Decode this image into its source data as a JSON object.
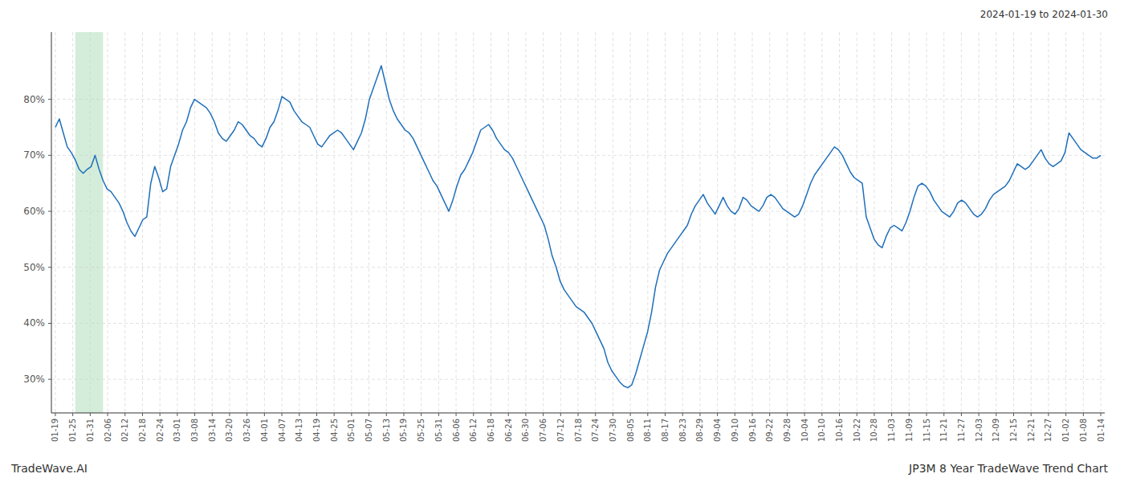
{
  "chart_data": {
    "type": "line",
    "title": "JP3M 8 Year TradeWave Trend Chart",
    "subtitle": "2024-01-19 to 2024-01-30",
    "annotations": [
      {
        "text": "TradeWave.AI"
      }
    ],
    "color": "#1f6fba",
    "grid": true,
    "bands": [
      {
        "start": 5,
        "end": 12,
        "color": "#d4edda"
      }
    ],
    "xlim": [
      -1,
      264
    ],
    "xticks": [
      {
        "value": 0,
        "label": "01-19"
      },
      {
        "value": 4.3833,
        "label": "01-25"
      },
      {
        "value": 8.7667,
        "label": "01-31"
      },
      {
        "value": 13.15,
        "label": "02-06"
      },
      {
        "value": 17.5333,
        "label": "02-12"
      },
      {
        "value": 21.9167,
        "label": "02-18"
      },
      {
        "value": 26.3,
        "label": "02-24"
      },
      {
        "value": 30.6833,
        "label": "03-01"
      },
      {
        "value": 35.0667,
        "label": "03-08"
      },
      {
        "value": 39.45,
        "label": "03-14"
      },
      {
        "value": 43.8333,
        "label": "03-20"
      },
      {
        "value": 48.2167,
        "label": "03-26"
      },
      {
        "value": 52.6,
        "label": "04-01"
      },
      {
        "value": 56.9833,
        "label": "04-07"
      },
      {
        "value": 61.3667,
        "label": "04-13"
      },
      {
        "value": 65.75,
        "label": "04-19"
      },
      {
        "value": 70.1333,
        "label": "04-25"
      },
      {
        "value": 74.5167,
        "label": "05-01"
      },
      {
        "value": 78.9,
        "label": "05-07"
      },
      {
        "value": 83.2833,
        "label": "05-13"
      },
      {
        "value": 87.6667,
        "label": "05-19"
      },
      {
        "value": 92.05,
        "label": "05-25"
      },
      {
        "value": 96.4333,
        "label": "05-31"
      },
      {
        "value": 100.8167,
        "label": "06-06"
      },
      {
        "value": 105.2,
        "label": "06-12"
      },
      {
        "value": 109.5833,
        "label": "06-18"
      },
      {
        "value": 113.9667,
        "label": "06-24"
      },
      {
        "value": 118.35,
        "label": "06-30"
      },
      {
        "value": 122.7333,
        "label": "07-06"
      },
      {
        "value": 127.1167,
        "label": "07-12"
      },
      {
        "value": 131.5,
        "label": "07-18"
      },
      {
        "value": 135.8833,
        "label": "07-24"
      },
      {
        "value": 140.2667,
        "label": "07-30"
      },
      {
        "value": 144.65,
        "label": "08-05"
      },
      {
        "value": 149.0333,
        "label": "08-11"
      },
      {
        "value": 153.4167,
        "label": "08-17"
      },
      {
        "value": 157.8,
        "label": "08-23"
      },
      {
        "value": 162.1833,
        "label": "08-29"
      },
      {
        "value": 166.5667,
        "label": "09-04"
      },
      {
        "value": 170.95,
        "label": "09-10"
      },
      {
        "value": 175.3333,
        "label": "09-16"
      },
      {
        "value": 179.7167,
        "label": "09-22"
      },
      {
        "value": 184.1,
        "label": "09-28"
      },
      {
        "value": 188.4833,
        "label": "10-04"
      },
      {
        "value": 192.8667,
        "label": "10-10"
      },
      {
        "value": 197.25,
        "label": "10-16"
      },
      {
        "value": 201.6333,
        "label": "10-22"
      },
      {
        "value": 206.0167,
        "label": "10-28"
      },
      {
        "value": 210.4,
        "label": "11-03"
      },
      {
        "value": 214.7833,
        "label": "11-09"
      },
      {
        "value": 219.1667,
        "label": "11-15"
      },
      {
        "value": 223.55,
        "label": "11-21"
      },
      {
        "value": 227.9333,
        "label": "11-27"
      },
      {
        "value": 232.3167,
        "label": "12-03"
      },
      {
        "value": 236.7,
        "label": "12-09"
      },
      {
        "value": 241.0833,
        "label": "12-15"
      },
      {
        "value": 245.4667,
        "label": "12-21"
      },
      {
        "value": 249.85,
        "label": "12-27"
      },
      {
        "value": 254.2333,
        "label": "01-02"
      },
      {
        "value": 258.6167,
        "label": "01-08"
      },
      {
        "value": 263,
        "label": "01-14"
      }
    ],
    "ylim": [
      24,
      92
    ],
    "yticks": [
      {
        "value": 30,
        "label": "30%"
      },
      {
        "value": 40,
        "label": "40%"
      },
      {
        "value": 50,
        "label": "50%"
      },
      {
        "value": 60,
        "label": "60%"
      },
      {
        "value": 70,
        "label": "70%"
      },
      {
        "value": 80,
        "label": "80%"
      }
    ],
    "values": [
      75.0,
      76.5,
      74.0,
      71.5,
      70.5,
      69.2,
      67.5,
      66.8,
      67.5,
      68.0,
      70.0,
      67.5,
      65.5,
      64.0,
      63.5,
      62.5,
      61.5,
      60.0,
      58.0,
      56.5,
      55.5,
      57.0,
      58.5,
      59.0,
      65.0,
      68.0,
      66.0,
      63.5,
      64.0,
      68.0,
      70.0,
      72.0,
      74.5,
      76.0,
      78.5,
      80.0,
      79.5,
      79.0,
      78.5,
      77.5,
      76.0,
      74.0,
      73.0,
      72.5,
      73.5,
      74.5,
      76.0,
      75.5,
      74.5,
      73.5,
      73.0,
      72.0,
      71.5,
      73.0,
      75.0,
      76.0,
      78.0,
      80.5,
      80.0,
      79.5,
      78.0,
      77.0,
      76.0,
      75.5,
      75.0,
      73.5,
      72.0,
      71.5,
      72.5,
      73.5,
      74.0,
      74.5,
      74.0,
      73.0,
      72.0,
      71.0,
      72.5,
      74.0,
      76.5,
      80.0,
      82.0,
      84.0,
      86.0,
      83.0,
      80.0,
      78.0,
      76.5,
      75.5,
      74.5,
      74.0,
      73.0,
      71.5,
      70.0,
      68.5,
      67.0,
      65.5,
      64.5,
      63.0,
      61.5,
      60.0,
      62.0,
      64.5,
      66.5,
      67.5,
      69.0,
      70.5,
      72.5,
      74.5,
      75.0,
      75.5,
      74.5,
      73.0,
      72.0,
      71.0,
      70.5,
      69.5,
      68.0,
      66.5,
      65.0,
      63.5,
      62.0,
      60.5,
      59.0,
      57.5,
      55.0,
      52.0,
      50.0,
      47.5,
      46.0,
      45.0,
      44.0,
      43.0,
      42.5,
      42.0,
      41.0,
      40.0,
      38.5,
      37.0,
      35.5,
      33.0,
      31.5,
      30.5,
      29.5,
      28.8,
      28.5,
      29.0,
      31.0,
      33.5,
      36.0,
      38.5,
      42.0,
      46.5,
      49.5,
      51.0,
      52.5,
      53.5,
      54.5,
      55.5,
      56.5,
      57.5,
      59.5,
      61.0,
      62.0,
      63.0,
      61.5,
      60.5,
      59.5,
      61.0,
      62.5,
      61.0,
      60.0,
      59.5,
      60.5,
      62.5,
      62.0,
      61.0,
      60.5,
      60.0,
      61.0,
      62.5,
      63.0,
      62.5,
      61.5,
      60.5,
      60.0,
      59.5,
      59.0,
      59.5,
      61.0,
      63.0,
      65.0,
      66.5,
      67.5,
      68.5,
      69.5,
      70.5,
      71.5,
      71.0,
      70.0,
      68.5,
      67.0,
      66.0,
      65.5,
      65.0,
      59.0,
      57.0,
      55.0,
      54.0,
      53.5,
      55.5,
      57.0,
      57.5,
      57.0,
      56.5,
      58.0,
      60.0,
      62.5,
      64.5,
      65.0,
      64.5,
      63.5,
      62.0,
      61.0,
      60.0,
      59.5,
      59.0,
      60.0,
      61.5,
      62.0,
      61.5,
      60.5,
      59.5,
      59.0,
      59.5,
      60.5,
      62.0,
      63.0,
      63.5,
      64.0,
      64.5,
      65.5,
      67.0,
      68.5,
      68.0,
      67.5,
      68.0,
      69.0,
      70.0,
      71.0,
      69.5,
      68.5,
      68.0,
      68.5,
      69.0,
      70.5,
      74.0,
      73.0,
      72.0,
      71.0,
      70.5,
      70.0,
      69.5,
      69.5,
      70.0
    ]
  }
}
